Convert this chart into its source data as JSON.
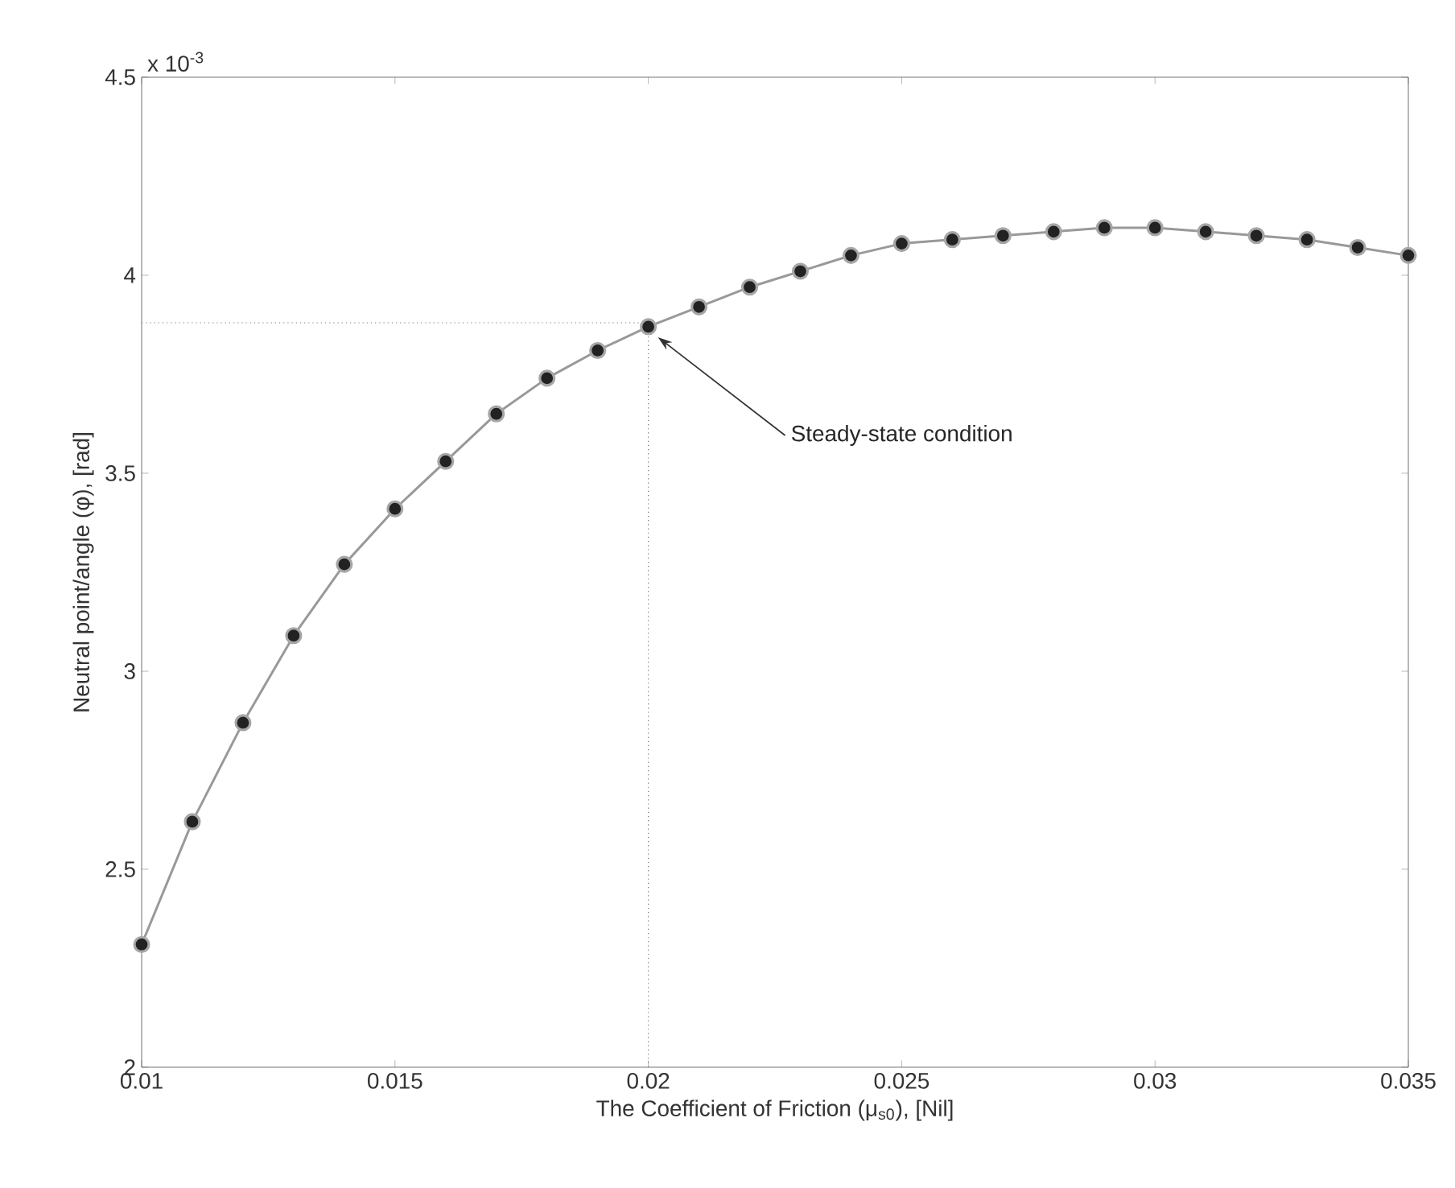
{
  "chart_data": {
    "type": "line",
    "xlabel": "The Coefficient of Friction (μ$_{s0}$), [Nil]",
    "ylabel": "Neutral point/angle (φ), [rad]",
    "x": [
      0.01,
      0.011,
      0.012,
      0.013,
      0.014,
      0.015,
      0.016,
      0.017,
      0.018,
      0.019,
      0.02,
      0.021,
      0.022,
      0.023,
      0.024,
      0.025,
      0.026,
      0.027,
      0.028,
      0.029,
      0.03,
      0.031,
      0.032,
      0.033,
      0.034,
      0.035
    ],
    "series": [
      {
        "color": "#222222",
        "values": [
          2.31,
          2.62,
          2.87,
          3.09,
          3.27,
          3.41,
          3.53,
          3.65,
          3.74,
          3.81,
          3.87,
          3.92,
          3.97,
          4.01,
          4.05,
          4.08,
          4.09,
          4.1,
          4.11,
          4.12,
          4.12,
          4.11,
          4.1,
          4.09,
          4.07,
          4.05
        ]
      }
    ],
    "marker": "circle",
    "line_style": "solid",
    "grid": false,
    "xlim": [
      0.01,
      0.035
    ],
    "ylim": [
      2,
      4.5
    ],
    "xticks": [
      0.01,
      0.015,
      0.02,
      0.025,
      0.03,
      0.035
    ],
    "yticks": [
      2,
      2.5,
      3,
      3.5,
      4,
      4.5
    ],
    "ref_lines": [
      {
        "axis": "y",
        "value": 3.88,
        "line_style": "dotted"
      },
      {
        "axis": "x",
        "value": 0.02,
        "line_style": "dotted"
      }
    ],
    "annotations": [
      "x 10$^{-3}$",
      "Steady-state condition"
    ]
  }
}
